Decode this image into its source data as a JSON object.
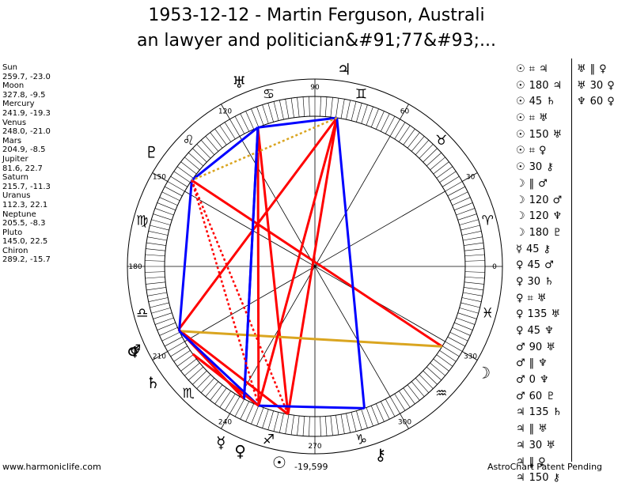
{
  "title": {
    "line1": "1953-12-12 - Martin Ferguson, Australi",
    "line2": "an lawyer and politician&#91;77&#93;..."
  },
  "planets": [
    {
      "name": "Sun",
      "value": "259.7, -23.0"
    },
    {
      "name": "Moon",
      "value": "327.8, -9.5"
    },
    {
      "name": "Mercury",
      "value": "241.9, -19.3"
    },
    {
      "name": "Venus",
      "value": "248.0, -21.0"
    },
    {
      "name": "Mars",
      "value": "204.9, -8.5"
    },
    {
      "name": "Jupiter",
      "value": "81.6, 22.7"
    },
    {
      "name": "Saturn",
      "value": "215.7, -11.3"
    },
    {
      "name": "Uranus",
      "value": "112.3, 22.1"
    },
    {
      "name": "Neptune",
      "value": "205.5, -8.3"
    },
    {
      "name": "Pluto",
      "value": "145.0, 22.5"
    },
    {
      "name": "Chiron",
      "value": "289.2, -15.7"
    }
  ],
  "wheel": {
    "degree_labels": [
      "0",
      "30",
      "60",
      "90",
      "120",
      "150",
      "180",
      "210",
      "240",
      "270",
      "300",
      "330"
    ],
    "zodiac": [
      "♈",
      "♉",
      "♊",
      "♋",
      "♌",
      "♍",
      "♎",
      "♏",
      "♐",
      "♑",
      "♒",
      "♓"
    ],
    "colors": {
      "red": "#ff0000",
      "blue": "#0000ff",
      "gold": "#daa520"
    }
  },
  "planet_glyphs": [
    {
      "glyph": "☉",
      "pos": 259.7
    },
    {
      "glyph": "☽",
      "pos": 327.8
    },
    {
      "glyph": "☿",
      "pos": 241.9
    },
    {
      "glyph": "♀",
      "pos": 248.0
    },
    {
      "glyph": "♂",
      "pos": 204.9
    },
    {
      "glyph": "♃",
      "pos": 81.6
    },
    {
      "glyph": "♄",
      "pos": 215.7
    },
    {
      "glyph": "♅",
      "pos": 112.3
    },
    {
      "glyph": "♆",
      "pos": 205.5
    },
    {
      "glyph": "♇",
      "pos": 145.0
    },
    {
      "glyph": "⚷",
      "pos": 289.2
    }
  ],
  "aspect_lines": [
    {
      "from": 259.7,
      "to": 81.6,
      "color": "red"
    },
    {
      "from": 259.7,
      "to": 112.3,
      "color": "red"
    },
    {
      "from": 259.7,
      "to": 145.0,
      "color": "red",
      "dotted": true
    },
    {
      "from": 259.7,
      "to": 204.9,
      "color": "red"
    },
    {
      "from": 327.8,
      "to": 145.0,
      "color": "red"
    },
    {
      "from": 327.8,
      "to": 205.5,
      "color": "gold"
    },
    {
      "from": 248.0,
      "to": 81.6,
      "color": "red"
    },
    {
      "from": 248.0,
      "to": 215.7,
      "color": "red"
    },
    {
      "from": 248.0,
      "to": 112.3,
      "color": "red"
    },
    {
      "from": 204.9,
      "to": 81.6,
      "color": "red"
    },
    {
      "from": 204.9,
      "to": 241.9,
      "color": "red"
    },
    {
      "from": 81.6,
      "to": 112.3,
      "color": "blue"
    },
    {
      "from": 81.6,
      "to": 289.2,
      "color": "blue"
    },
    {
      "from": 112.3,
      "to": 145.0,
      "color": "blue"
    },
    {
      "from": 145.0,
      "to": 205.5,
      "color": "blue"
    },
    {
      "from": 205.5,
      "to": 248.0,
      "color": "blue"
    },
    {
      "from": 248.0,
      "to": 289.2,
      "color": "blue"
    },
    {
      "from": 112.3,
      "to": 241.9,
      "color": "blue"
    },
    {
      "from": 81.6,
      "to": 145.0,
      "color": "gold",
      "dotted": true
    },
    {
      "from": 215.7,
      "to": 248.0,
      "color": "red"
    },
    {
      "from": 241.9,
      "to": 112.3,
      "color": "blue"
    },
    {
      "from": 145.0,
      "to": 248.0,
      "color": "red",
      "dotted": true
    }
  ],
  "aspects_col1": [
    {
      "p1": "☉",
      "asp": "⌗",
      "p2": "♃"
    },
    {
      "p1": "☉",
      "asp": "180",
      "p2": "♃"
    },
    {
      "p1": "☉",
      "asp": "45",
      "p2": "♄"
    },
    {
      "p1": "☉",
      "asp": "⌗",
      "p2": "♅"
    },
    {
      "p1": "☉",
      "asp": "150",
      "p2": "♅"
    },
    {
      "p1": "☉",
      "asp": "⌗",
      "p2": "♀"
    },
    {
      "p1": "☉",
      "asp": "30",
      "p2": "⚷"
    },
    {
      "p1": "☽",
      "asp": "‖",
      "p2": "♂"
    },
    {
      "p1": "☽",
      "asp": "120",
      "p2": "♂"
    },
    {
      "p1": "☽",
      "asp": "120",
      "p2": "♆"
    },
    {
      "p1": "☽",
      "asp": "180",
      "p2": "♇"
    },
    {
      "p1": "☿",
      "asp": "45",
      "p2": "⚷"
    },
    {
      "p1": "♀",
      "asp": "45",
      "p2": "♂"
    },
    {
      "p1": "♀",
      "asp": "30",
      "p2": "♄"
    },
    {
      "p1": "♀",
      "asp": "⌗",
      "p2": "♅"
    },
    {
      "p1": "♀",
      "asp": "135",
      "p2": "♅"
    },
    {
      "p1": "♀",
      "asp": "45",
      "p2": "♆"
    },
    {
      "p1": "♂",
      "asp": "90",
      "p2": "♅"
    },
    {
      "p1": "♂",
      "asp": "‖",
      "p2": "♆"
    },
    {
      "p1": "♂",
      "asp": "0",
      "p2": "♆"
    },
    {
      "p1": "♂",
      "asp": "60",
      "p2": "♇"
    },
    {
      "p1": "♃",
      "asp": "135",
      "p2": "♄"
    },
    {
      "p1": "♃",
      "asp": "‖",
      "p2": "♅"
    },
    {
      "p1": "♃",
      "asp": "30",
      "p2": "♅"
    },
    {
      "p1": "♃",
      "asp": "‖",
      "p2": "♀"
    },
    {
      "p1": "♃",
      "asp": "150",
      "p2": "⚷"
    }
  ],
  "aspects_col2": [
    {
      "p1": "♅",
      "asp": "‖",
      "p2": "♀"
    },
    {
      "p1": "♅",
      "asp": "30",
      "p2": "♀"
    },
    {
      "p1": "♆",
      "asp": "60",
      "p2": "♀"
    }
  ],
  "footer": {
    "website": "www.harmoniclife.com",
    "coord": "-19,599",
    "patent": "AstroChart Patent Pending"
  }
}
